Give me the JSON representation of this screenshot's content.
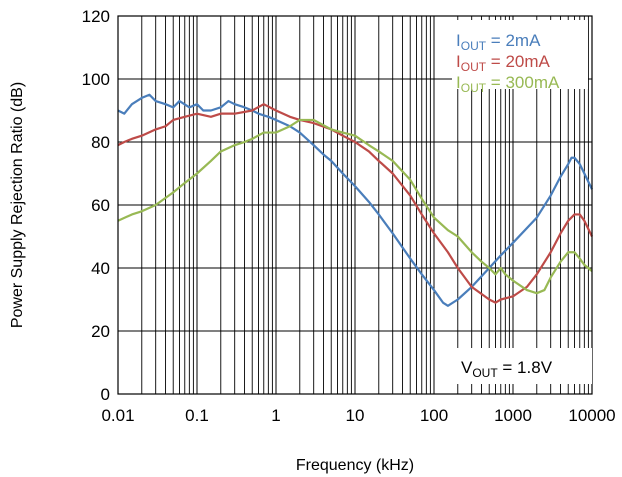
{
  "chart_data": {
    "type": "line",
    "title": "",
    "xlabel": "Frequency (kHz)",
    "ylabel": "Power Supply Rejection Ratio (dB)",
    "xscale": "log",
    "xlim": [
      0.01,
      10000
    ],
    "ylim": [
      0,
      120
    ],
    "x_ticks": [
      "0.01",
      "0.1",
      "1",
      "10",
      "100",
      "1000",
      "10000"
    ],
    "y_ticks": [
      "0",
      "20",
      "40",
      "60",
      "80",
      "100",
      "120"
    ],
    "grid": "log-minor vertical, major horizontal",
    "legend_position": "top-right",
    "annotation": {
      "main": "V",
      "sub": "OUT",
      "rest": " = 1.8V"
    },
    "series": [
      {
        "label_main": "I",
        "label_sub": "OUT",
        "label_rest": " = 2mA",
        "color": "#4a7ebb",
        "points": [
          [
            0.01,
            90
          ],
          [
            0.012,
            89
          ],
          [
            0.015,
            92
          ],
          [
            0.02,
            94
          ],
          [
            0.025,
            95
          ],
          [
            0.03,
            93
          ],
          [
            0.04,
            92
          ],
          [
            0.05,
            91
          ],
          [
            0.06,
            93
          ],
          [
            0.08,
            91
          ],
          [
            0.1,
            92
          ],
          [
            0.12,
            90
          ],
          [
            0.15,
            90
          ],
          [
            0.2,
            91
          ],
          [
            0.25,
            93
          ],
          [
            0.3,
            92
          ],
          [
            0.4,
            91
          ],
          [
            0.5,
            90
          ],
          [
            0.6,
            89
          ],
          [
            0.8,
            88
          ],
          [
            1,
            87
          ],
          [
            1.5,
            85
          ],
          [
            2,
            83
          ],
          [
            3,
            79
          ],
          [
            4,
            76
          ],
          [
            5,
            74
          ],
          [
            7,
            70
          ],
          [
            10,
            66
          ],
          [
            15,
            61
          ],
          [
            20,
            57
          ],
          [
            30,
            51
          ],
          [
            50,
            43
          ],
          [
            70,
            38
          ],
          [
            100,
            33
          ],
          [
            130,
            29
          ],
          [
            150,
            28
          ],
          [
            200,
            30
          ],
          [
            300,
            34
          ],
          [
            500,
            40
          ],
          [
            700,
            44
          ],
          [
            1000,
            48
          ],
          [
            2000,
            56
          ],
          [
            3000,
            63
          ],
          [
            4000,
            69
          ],
          [
            5000,
            73
          ],
          [
            5500,
            75
          ],
          [
            6000,
            75
          ],
          [
            7000,
            73
          ],
          [
            8000,
            70
          ],
          [
            10000,
            65
          ]
        ]
      },
      {
        "label_main": "I",
        "label_sub": "OUT",
        "label_rest": " = 20mA",
        "color": "#be4b48",
        "points": [
          [
            0.01,
            79
          ],
          [
            0.012,
            80
          ],
          [
            0.015,
            81
          ],
          [
            0.02,
            82
          ],
          [
            0.03,
            84
          ],
          [
            0.04,
            85
          ],
          [
            0.05,
            87
          ],
          [
            0.07,
            88
          ],
          [
            0.1,
            89
          ],
          [
            0.15,
            88
          ],
          [
            0.2,
            89
          ],
          [
            0.3,
            89
          ],
          [
            0.5,
            90
          ],
          [
            0.7,
            92
          ],
          [
            1,
            90
          ],
          [
            1.5,
            88
          ],
          [
            2,
            87
          ],
          [
            3,
            86
          ],
          [
            5,
            84
          ],
          [
            7,
            82
          ],
          [
            10,
            80
          ],
          [
            15,
            77
          ],
          [
            20,
            74
          ],
          [
            30,
            70
          ],
          [
            50,
            63
          ],
          [
            70,
            57
          ],
          [
            100,
            51
          ],
          [
            150,
            45
          ],
          [
            200,
            40
          ],
          [
            300,
            34
          ],
          [
            500,
            30
          ],
          [
            600,
            29
          ],
          [
            700,
            30
          ],
          [
            1000,
            31
          ],
          [
            1500,
            34
          ],
          [
            2000,
            38
          ],
          [
            3000,
            45
          ],
          [
            4000,
            51
          ],
          [
            5000,
            55
          ],
          [
            6000,
            57
          ],
          [
            7000,
            57
          ],
          [
            8000,
            55
          ],
          [
            10000,
            50
          ]
        ]
      },
      {
        "label_main": "I",
        "label_sub": "OUT",
        "label_rest": " = 300mA",
        "color": "#98b954",
        "points": [
          [
            0.01,
            55
          ],
          [
            0.015,
            57
          ],
          [
            0.02,
            58
          ],
          [
            0.03,
            60
          ],
          [
            0.05,
            64
          ],
          [
            0.07,
            67
          ],
          [
            0.1,
            70
          ],
          [
            0.15,
            74
          ],
          [
            0.2,
            77
          ],
          [
            0.3,
            79
          ],
          [
            0.4,
            80
          ],
          [
            0.5,
            81
          ],
          [
            0.7,
            83
          ],
          [
            1,
            83
          ],
          [
            1.5,
            85
          ],
          [
            2,
            87
          ],
          [
            3,
            87
          ],
          [
            5,
            84
          ],
          [
            7,
            83
          ],
          [
            10,
            82
          ],
          [
            15,
            79
          ],
          [
            20,
            77
          ],
          [
            30,
            74
          ],
          [
            50,
            68
          ],
          [
            70,
            62
          ],
          [
            100,
            56
          ],
          [
            150,
            52
          ],
          [
            200,
            50
          ],
          [
            300,
            45
          ],
          [
            400,
            42
          ],
          [
            500,
            40
          ],
          [
            600,
            38
          ],
          [
            700,
            40
          ],
          [
            800,
            38
          ],
          [
            1000,
            36
          ],
          [
            1500,
            33
          ],
          [
            2000,
            32
          ],
          [
            2500,
            33
          ],
          [
            3000,
            37
          ],
          [
            4000,
            42
          ],
          [
            5000,
            45
          ],
          [
            6000,
            45
          ],
          [
            7000,
            43
          ],
          [
            8000,
            41
          ],
          [
            10000,
            39
          ]
        ]
      }
    ]
  }
}
